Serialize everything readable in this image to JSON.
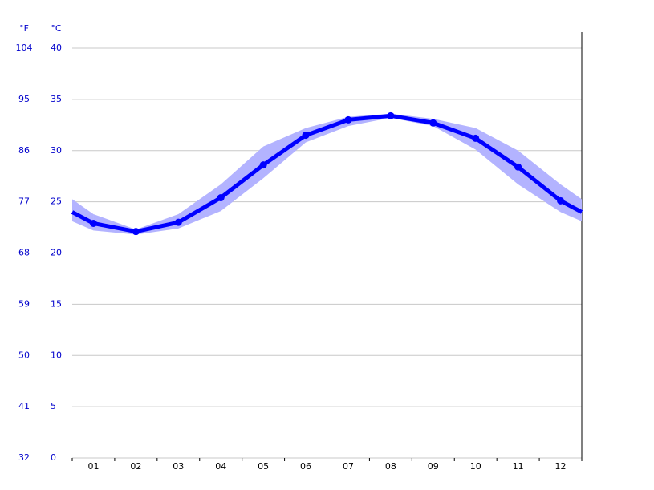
{
  "chart_data": {
    "type": "line",
    "y_unit_label": "°C",
    "y2_unit_label": "°F",
    "categories": [
      "01",
      "02",
      "03",
      "04",
      "05",
      "06",
      "07",
      "08",
      "09",
      "10",
      "11",
      "12"
    ],
    "series": [
      {
        "color": "#0000ff",
        "values": [
          22.9,
          22.1,
          23.0,
          25.4,
          28.6,
          31.5,
          33.0,
          33.4,
          32.7,
          31.2,
          28.4,
          25.1
        ]
      }
    ],
    "range": {
      "color": "#b3b3ff",
      "low": [
        22.2,
        21.8,
        22.4,
        24.1,
        27.3,
        30.8,
        32.4,
        33.2,
        32.4,
        30.1,
        26.7,
        24.0
      ],
      "high": [
        23.8,
        22.3,
        23.8,
        26.7,
        30.4,
        32.2,
        33.3,
        33.6,
        33.1,
        32.2,
        30.0,
        26.7
      ]
    },
    "ylim": [
      0,
      40
    ],
    "yticks": [
      0,
      5,
      10,
      15,
      20,
      25,
      30,
      35,
      40
    ],
    "y2lim": [
      32,
      104
    ],
    "y2ticks": [
      32,
      41,
      50,
      59,
      68,
      77,
      86,
      95,
      104
    ],
    "grid": true
  }
}
